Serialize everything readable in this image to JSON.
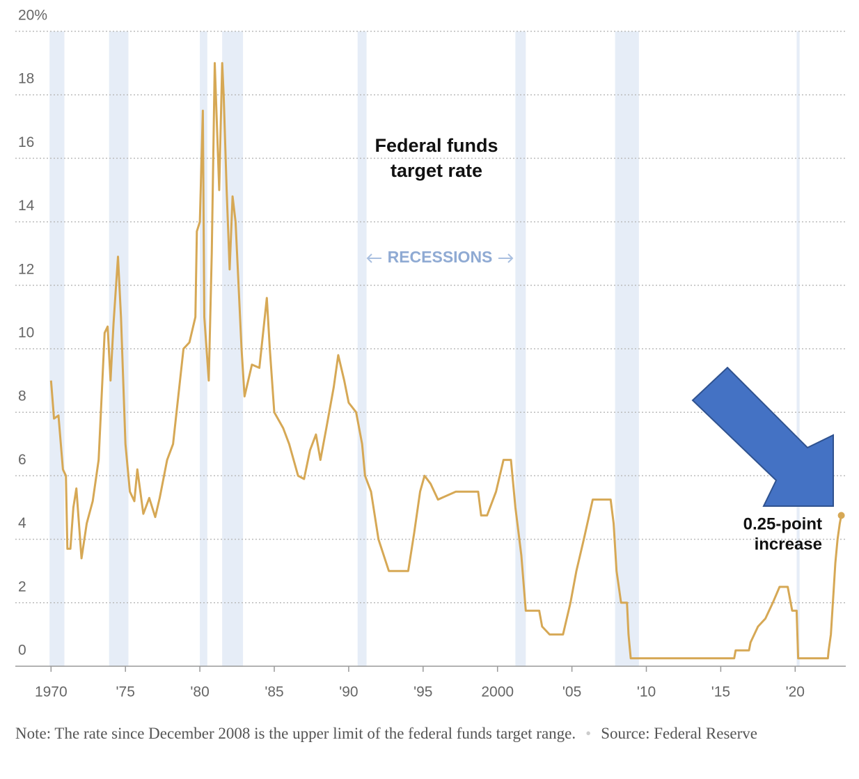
{
  "chart_data": {
    "type": "line",
    "annotation_lines": [
      "Federal funds",
      "target rate"
    ],
    "recessions_label": "RECESSIONS",
    "end_annotation_lines": [
      "0.25-point",
      "increase"
    ],
    "note": "Note: The rate since December 2008 is the upper limit of the federal funds target range.",
    "source": "Source: Federal Reserve",
    "color": "#d6a855",
    "recession_color": "#e6edf7",
    "grid": true,
    "xlim": [
      1967.6,
      2023.4
    ],
    "ylim": [
      0,
      20
    ],
    "xticks": [
      1970,
      {
        "value": 1975,
        "label": "'75"
      },
      {
        "value": 1980,
        "label": "'80"
      },
      {
        "value": 1985,
        "label": "'85"
      },
      {
        "value": 1990,
        "label": "'90"
      },
      {
        "value": 1995,
        "label": "'95"
      },
      2000,
      {
        "value": 2005,
        "label": "'05"
      },
      {
        "value": 2010,
        "label": "'10"
      },
      {
        "value": 2015,
        "label": "'15"
      },
      {
        "value": 2020,
        "label": "'20"
      }
    ],
    "yticks": [
      0,
      2,
      4,
      6,
      8,
      10,
      12,
      14,
      16,
      18,
      {
        "value": 20,
        "label": "20%"
      }
    ],
    "recessions": [
      [
        1969.9,
        1970.9
      ],
      [
        1973.9,
        1975.2
      ],
      [
        1980.0,
        1980.5
      ],
      [
        1981.5,
        1982.9
      ],
      [
        1990.6,
        1991.2
      ],
      [
        2001.2,
        2001.9
      ],
      [
        2007.9,
        2009.5
      ],
      [
        2020.1,
        2020.3
      ]
    ],
    "x": [
      1970.0,
      1970.2,
      1970.5,
      1970.8,
      1971.0,
      1971.1,
      1971.3,
      1971.5,
      1971.7,
      1972.05,
      1972.4,
      1972.8,
      1973.2,
      1973.6,
      1973.8,
      1974.0,
      1974.2,
      1974.5,
      1974.7,
      1975.0,
      1975.3,
      1975.6,
      1975.8,
      1976.2,
      1976.6,
      1977.0,
      1977.3,
      1977.8,
      1978.2,
      1978.9,
      1979.3,
      1979.7,
      1979.8,
      1980.0,
      1980.2,
      1980.3,
      1980.6,
      1980.8,
      1981.0,
      1981.3,
      1981.5,
      1981.6,
      1981.8,
      1982.0,
      1982.2,
      1982.4,
      1982.8,
      1983.0,
      1983.5,
      1984.0,
      1984.5,
      1984.7,
      1985.0,
      1985.6,
      1986.0,
      1986.6,
      1987.0,
      1987.4,
      1987.8,
      1988.1,
      1988.5,
      1989.0,
      1989.3,
      1989.7,
      1990.0,
      1990.5,
      1990.9,
      1991.1,
      1991.5,
      1992.0,
      1992.7,
      1994.0,
      1994.4,
      1994.8,
      1995.1,
      1995.5,
      1996.0,
      1997.2,
      1998.7,
      1998.9,
      1999.3,
      1999.9,
      2000.4,
      2000.9,
      2001.2,
      2001.6,
      2001.9,
      2002.8,
      2003.0,
      2003.5,
      2004.4,
      2004.9,
      2005.3,
      2005.8,
      2006.4,
      2007.6,
      2007.8,
      2008.0,
      2008.3,
      2008.7,
      2008.8,
      2008.95,
      2015.9,
      2016.0,
      2016.9,
      2017.0,
      2017.5,
      2018.0,
      2018.5,
      2018.95,
      2019.5,
      2019.8,
      2020.1,
      2020.2,
      2022.2,
      2022.25,
      2022.4,
      2022.6,
      2022.7,
      2022.85,
      2023.0,
      2023.1
    ],
    "values": [
      9.0,
      7.8,
      7.9,
      6.2,
      6.0,
      3.7,
      3.7,
      5.0,
      5.6,
      3.4,
      4.5,
      5.2,
      6.5,
      10.5,
      10.7,
      9.0,
      10.8,
      12.9,
      11.0,
      7.0,
      5.5,
      5.2,
      6.2,
      4.8,
      5.3,
      4.7,
      5.3,
      6.5,
      7.0,
      10.0,
      10.2,
      11.0,
      13.7,
      14.0,
      17.5,
      11.0,
      9.0,
      13.0,
      19.0,
      15.0,
      19.0,
      18.0,
      15.0,
      12.5,
      14.8,
      14.0,
      10.0,
      8.5,
      9.5,
      9.4,
      11.6,
      10.0,
      8.0,
      7.5,
      7.0,
      6.0,
      5.9,
      6.8,
      7.3,
      6.5,
      7.5,
      8.8,
      9.8,
      9.0,
      8.3,
      8.0,
      7.0,
      6.0,
      5.5,
      4.0,
      3.0,
      3.0,
      4.2,
      5.5,
      6.0,
      5.75,
      5.25,
      5.5,
      5.5,
      4.75,
      4.75,
      5.5,
      6.5,
      6.5,
      5.0,
      3.5,
      1.75,
      1.75,
      1.25,
      1.0,
      1.0,
      2.0,
      3.0,
      4.0,
      5.25,
      5.25,
      4.5,
      3.0,
      2.0,
      2.0,
      1.0,
      0.25,
      0.25,
      0.5,
      0.5,
      0.75,
      1.25,
      1.5,
      2.0,
      2.5,
      2.5,
      1.75,
      1.75,
      0.25,
      0.25,
      0.5,
      1.0,
      2.5,
      3.25,
      4.0,
      4.5,
      4.75
    ]
  }
}
